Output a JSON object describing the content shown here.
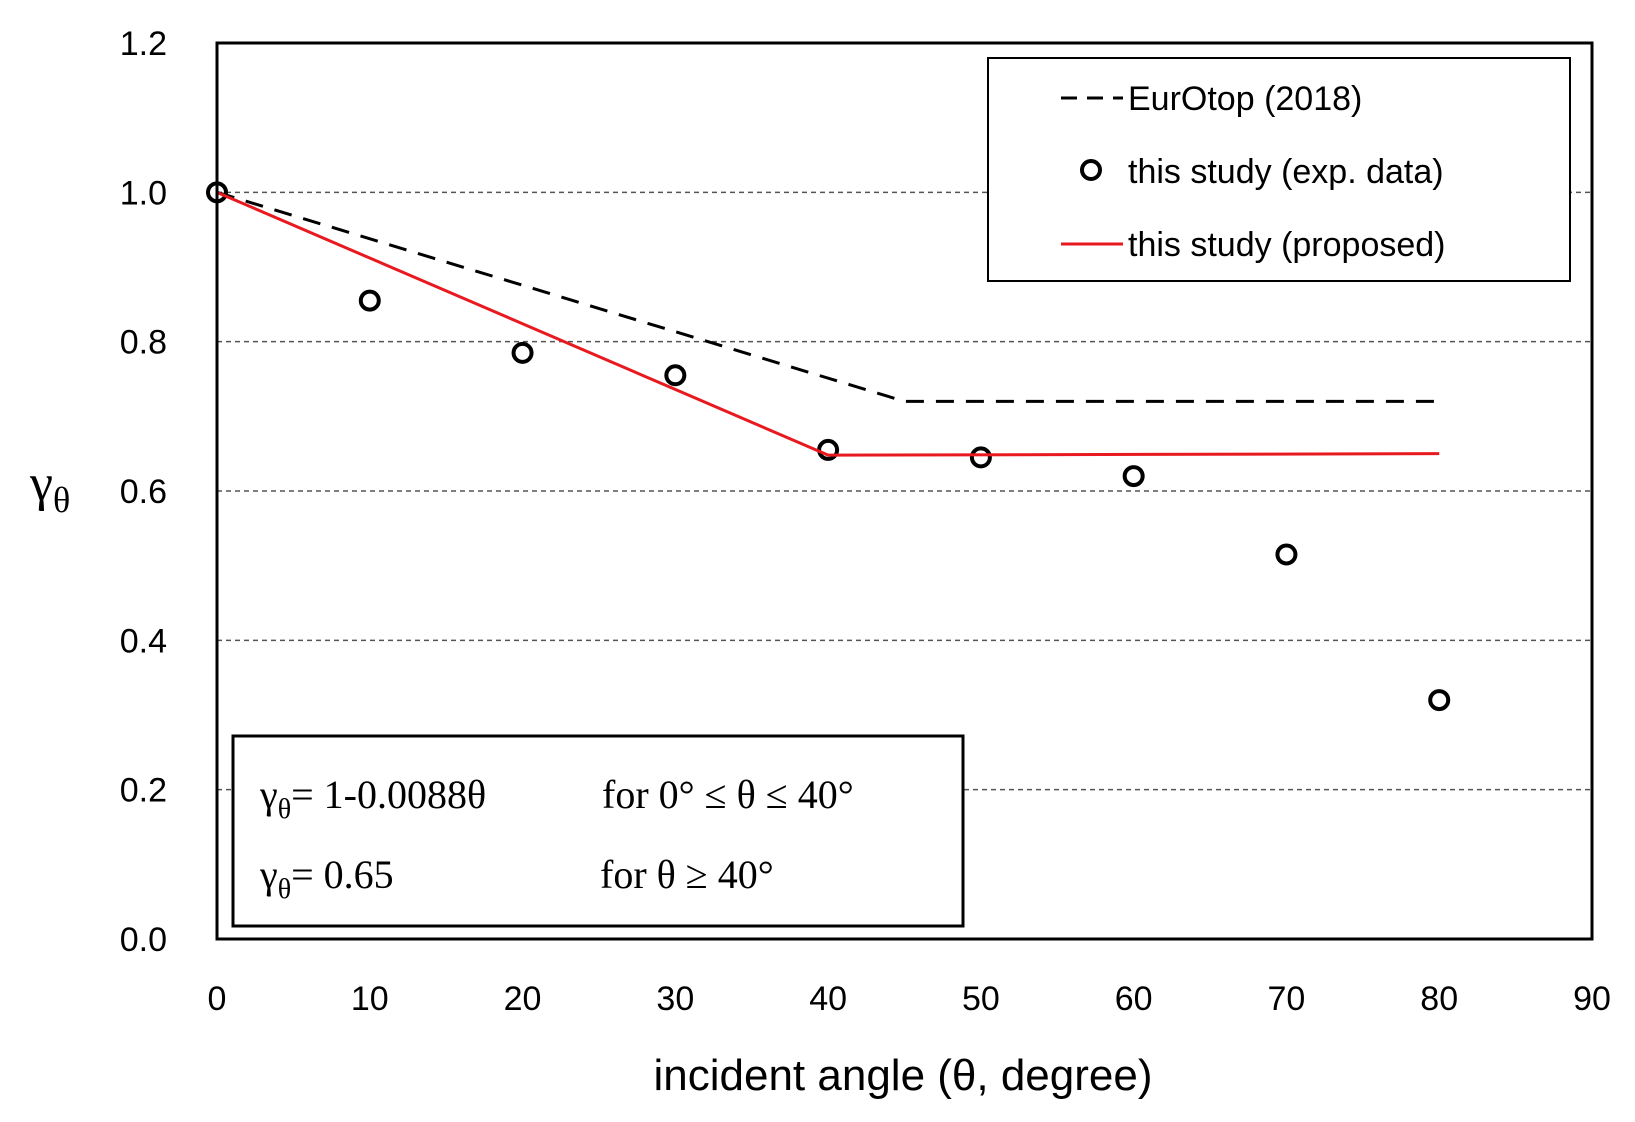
{
  "chart_data": {
    "type": "line",
    "xlabel": "incident angle (θ, degree)",
    "ylabel": "γ",
    "ylabel_sub": "θ",
    "xlim": [
      0,
      90
    ],
    "ylim": [
      0.0,
      1.2
    ],
    "xticks": [
      "0",
      "10",
      "20",
      "30",
      "40",
      "50",
      "60",
      "70",
      "80",
      "90"
    ],
    "yticks": [
      "0.0",
      "0.2",
      "0.4",
      "0.6",
      "0.8",
      "1.0",
      "1.2"
    ],
    "grid": "horizontal dashed",
    "legend_position": "top-right",
    "series": [
      {
        "name": "EurOtop (2018)",
        "style": "dashed",
        "color": "#000000",
        "x": [
          0,
          45,
          80
        ],
        "y": [
          1.0,
          0.72,
          0.72
        ]
      },
      {
        "name": "this study (exp. data)",
        "style": "markers",
        "color": "#000000",
        "x": [
          0,
          10,
          20,
          30,
          40,
          50,
          60,
          70,
          80
        ],
        "y": [
          1.0,
          0.855,
          0.785,
          0.755,
          0.655,
          0.645,
          0.62,
          0.515,
          0.32
        ]
      },
      {
        "name": "this study (proposed)",
        "style": "solid",
        "color": "#e8191f",
        "x": [
          0,
          40,
          80
        ],
        "y": [
          1.0,
          0.648,
          0.65
        ]
      }
    ],
    "annotation": {
      "line1_symbol": "γ",
      "line1_sub": "θ",
      "line1_eq": "= 1-0.0088θ",
      "line1_cond": "for  0° ≤ θ ≤ 40°",
      "line2_symbol": "γ",
      "line2_sub": "θ",
      "line2_eq": "= 0.65",
      "line2_cond": "for  θ ≥ 40°"
    }
  }
}
